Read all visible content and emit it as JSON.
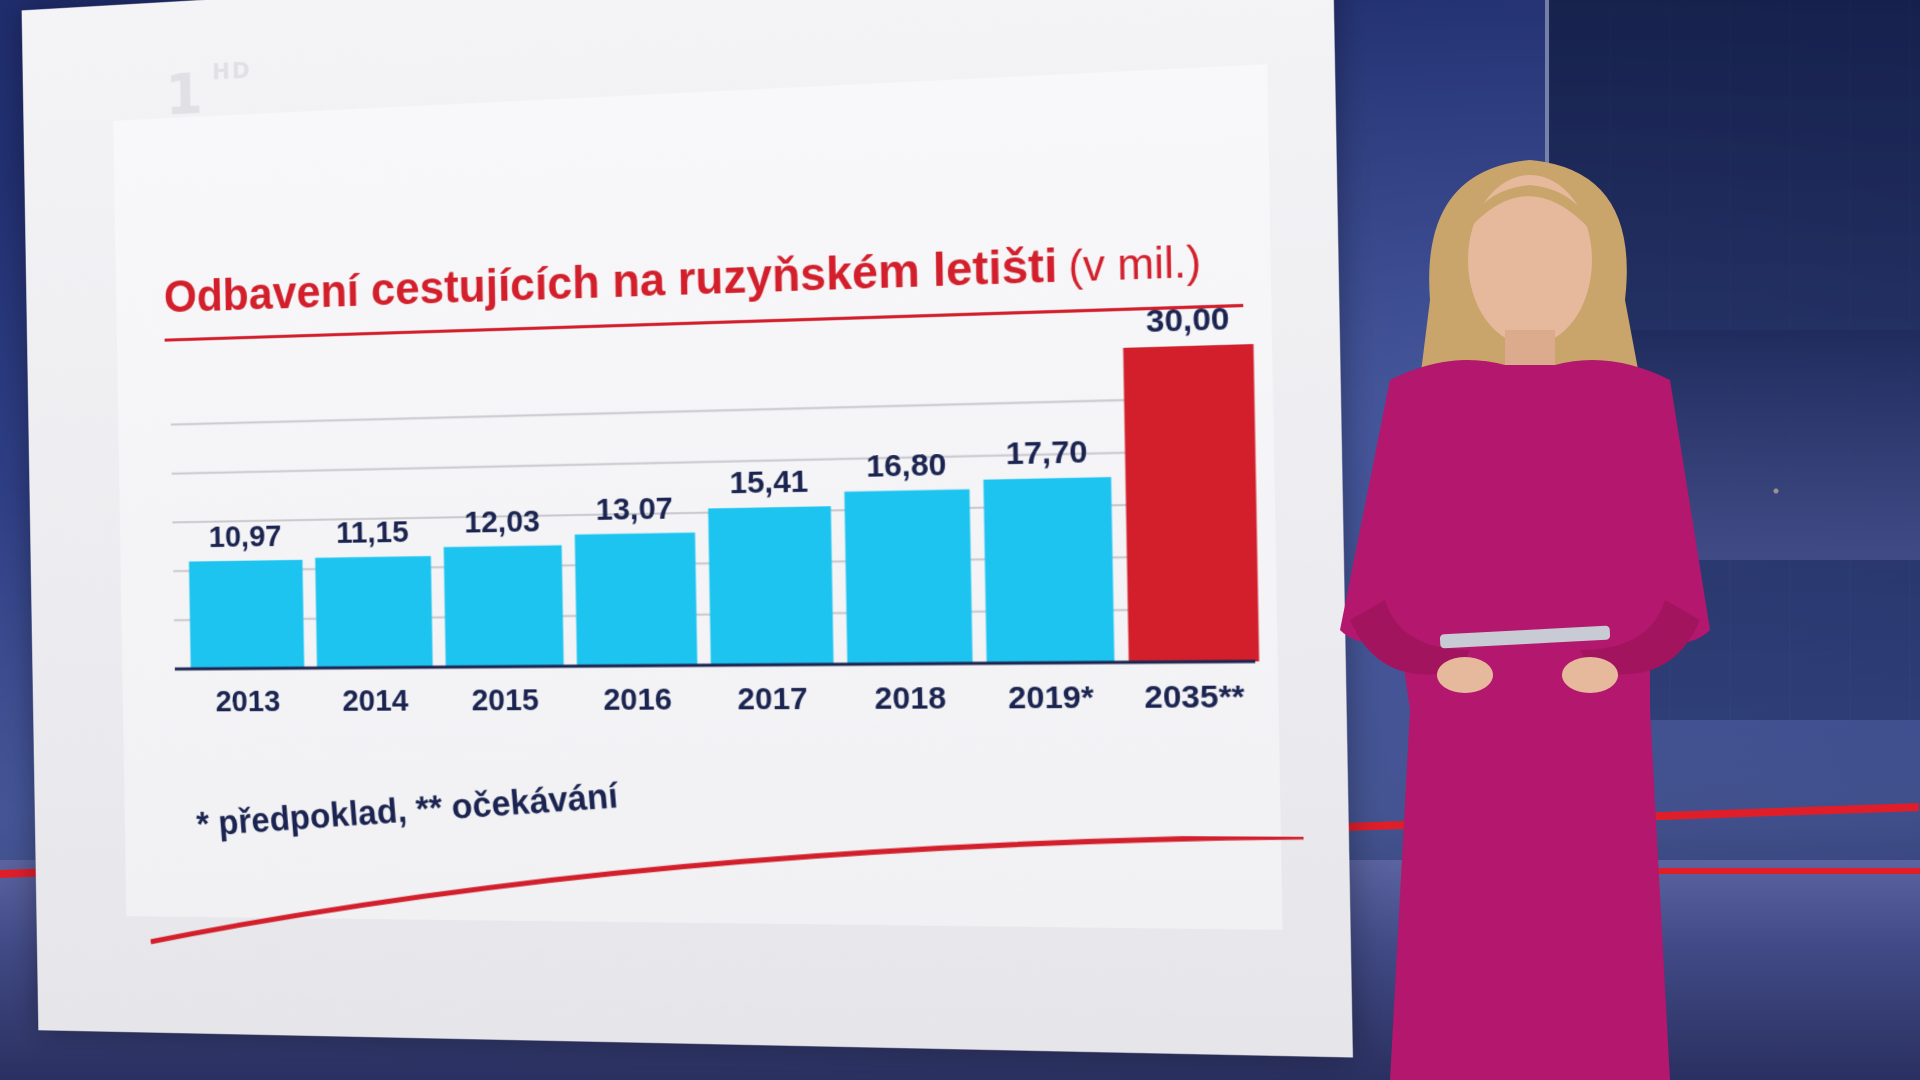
{
  "channel": {
    "logo_text": "1",
    "logo_hd": "HD"
  },
  "chart_data": {
    "type": "bar",
    "title": "Odbavení cestujících na ruzyňském letišti",
    "unit_label": "(v mil.)",
    "categories": [
      "2013",
      "2014",
      "2015",
      "2016",
      "2017",
      "2018",
      "2019*",
      "2035**"
    ],
    "values": [
      10.97,
      11.15,
      12.03,
      13.07,
      15.41,
      16.8,
      17.7,
      30.0
    ],
    "value_labels": [
      "10,97",
      "11,15",
      "12,03",
      "13,07",
      "15,41",
      "16,80",
      "17,70",
      "30,00"
    ],
    "colors": [
      "#1ec4f0",
      "#1ec4f0",
      "#1ec4f0",
      "#1ec4f0",
      "#1ec4f0",
      "#1ec4f0",
      "#1ec4f0",
      "#d21f2b"
    ],
    "ylim": [
      0,
      30
    ],
    "grid": true,
    "footnote": "* předpoklad, ** očekávání"
  },
  "colors": {
    "accent_red": "#d21f2b",
    "bar_blue": "#1ec4f0",
    "text_navy": "#1b2450",
    "dress_magenta": "#b3176e"
  }
}
